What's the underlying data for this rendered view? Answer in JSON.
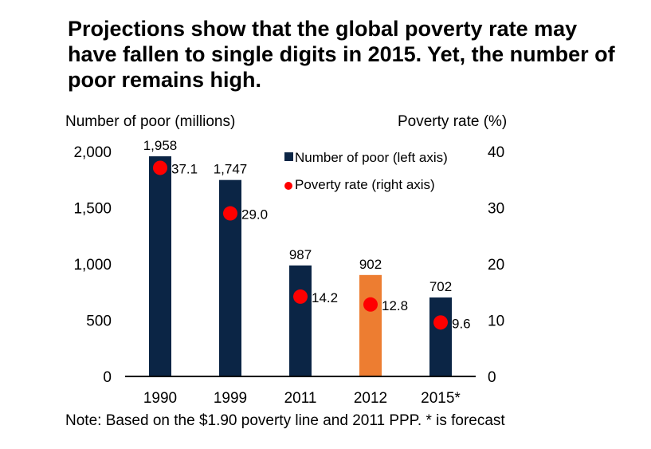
{
  "chart_data": {
    "type": "bar",
    "title": "Projections show that the global poverty rate may have fallen to single digits in 2015. Yet, the number of poor remains high.",
    "categories": [
      "1990",
      "1999",
      "2011",
      "2012",
      "2015*"
    ],
    "series": [
      {
        "name": "Number of poor (left axis)",
        "type": "bar",
        "axis": "left",
        "values": [
          1958,
          1747,
          987,
          902,
          702
        ],
        "labels": [
          "1,958",
          "1,747",
          "987",
          "902",
          "702"
        ],
        "colors": [
          "#0b2545",
          "#0b2545",
          "#0b2545",
          "#ed7d31",
          "#0b2545"
        ]
      },
      {
        "name": "Poverty rate (right axis)",
        "type": "scatter",
        "axis": "right",
        "values": [
          37.1,
          29.0,
          14.2,
          12.8,
          9.6
        ],
        "labels": [
          "37.1",
          "29.0",
          "14.2",
          "12.8",
          "9.6"
        ],
        "color": "#ff0000"
      }
    ],
    "left_axis": {
      "label": "Number of poor (millions)",
      "range": [
        0,
        2000
      ],
      "ticks": [
        0,
        500,
        1000,
        1500,
        2000
      ],
      "tick_labels": [
        "0",
        "500",
        "1,000",
        "1,500",
        "2,000"
      ]
    },
    "right_axis": {
      "label": "Poverty rate (%)",
      "range": [
        0,
        40
      ],
      "ticks": [
        0,
        10,
        20,
        30,
        40
      ],
      "tick_labels": [
        "0",
        "10",
        "20",
        "30",
        "40"
      ]
    },
    "legend": {
      "position": "top-right",
      "entries": [
        {
          "label": "Number of poor (left axis)",
          "marker": "square",
          "color": "#0b2545"
        },
        {
          "label": "Poverty rate (right axis)",
          "marker": "circle",
          "color": "#ff0000"
        }
      ]
    },
    "grid": false,
    "note": "Note: Based on the $1.90 poverty line and 2011 PPP. * is forecast"
  }
}
